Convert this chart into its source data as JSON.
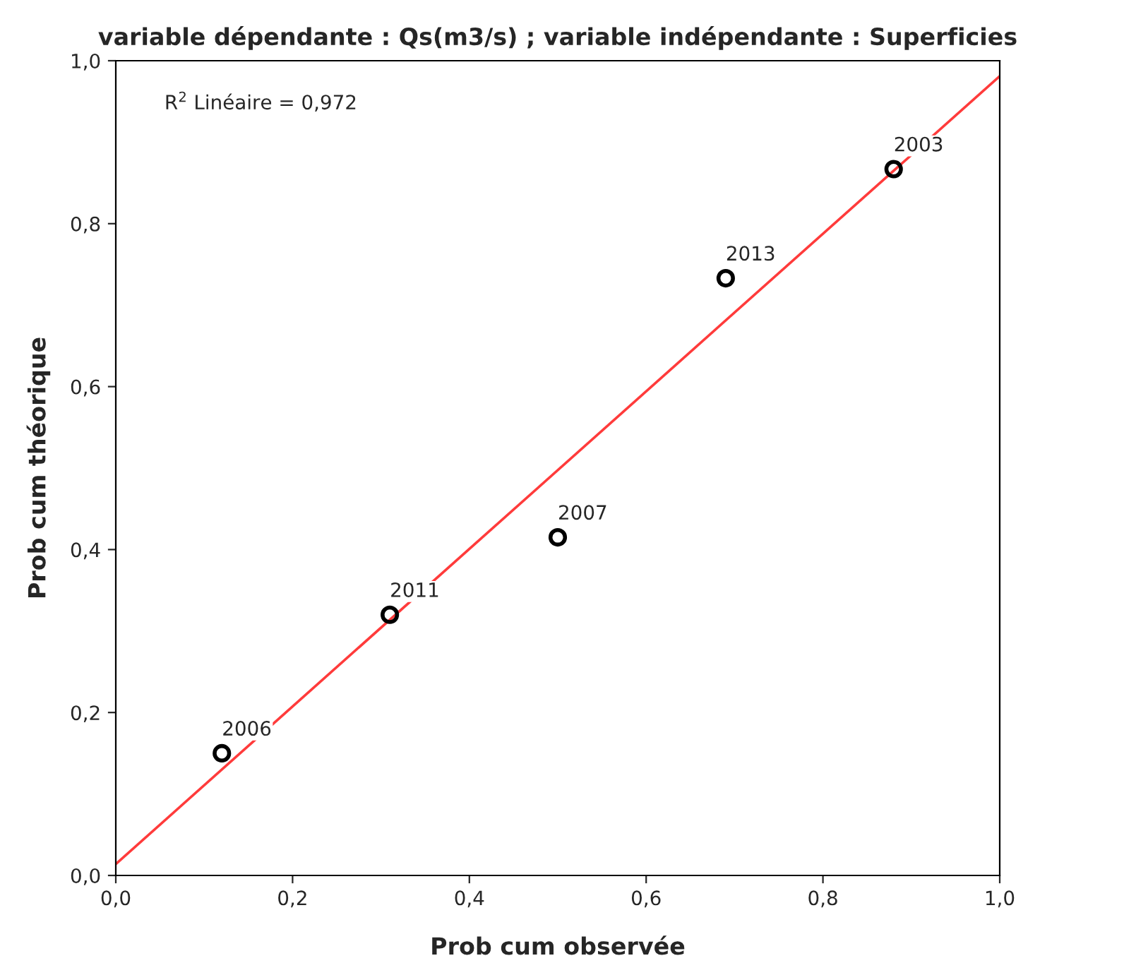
{
  "chart_data": {
    "type": "scatter",
    "title": "variable dépendante : Qs(m3/s) ; variable indépendante : Superficies",
    "xlabel": "Prob cum observée",
    "ylabel": "Prob cum théorique",
    "xlim": [
      0,
      1
    ],
    "ylim": [
      0,
      1
    ],
    "xticks": [
      {
        "value": 0,
        "label": "0,0"
      },
      {
        "value": 0.2,
        "label": "0,2"
      },
      {
        "value": 0.4,
        "label": "0,4"
      },
      {
        "value": 0.6,
        "label": "0,6"
      },
      {
        "value": 0.8,
        "label": "0,8"
      },
      {
        "value": 1,
        "label": "1,0"
      }
    ],
    "yticks": [
      {
        "value": 0,
        "label": "0,0"
      },
      {
        "value": 0.2,
        "label": "0,2"
      },
      {
        "value": 0.4,
        "label": "0,4"
      },
      {
        "value": 0.6,
        "label": "0,6"
      },
      {
        "value": 0.8,
        "label": "0,8"
      },
      {
        "value": 1,
        "label": "1,0"
      }
    ],
    "grid": false,
    "marker": "circle",
    "series": [
      {
        "color": "#000000",
        "x": [
          0.12,
          0.31,
          0.5,
          0.69,
          0.88
        ],
        "values": [
          0.15,
          0.32,
          0.415,
          0.733,
          0.867
        ]
      },
      {
        "type": "line",
        "color": "#ff3b3b",
        "marker": "none",
        "x": [
          0,
          1
        ],
        "values": [
          0.014,
          0.981
        ]
      }
    ],
    "annotations": [
      "R$^{2}$ Linéaire = 0,972",
      {
        "text": "2006",
        "x": 0.12,
        "y": 0.15
      },
      {
        "text": "2011",
        "x": 0.31,
        "y": 0.32
      },
      {
        "text": "2007",
        "x": 0.5,
        "y": 0.415
      },
      {
        "text": "2013",
        "x": 0.69,
        "y": 0.733
      },
      {
        "text": "2003",
        "x": 0.88,
        "y": 0.867
      }
    ]
  }
}
